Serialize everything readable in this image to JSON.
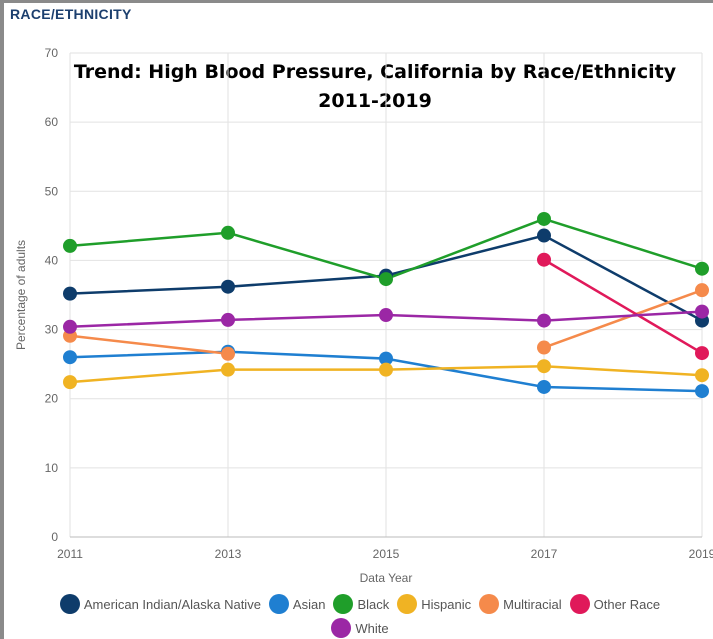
{
  "header": "RACE/ETHNICITY",
  "chart_data": {
    "type": "line",
    "title": "Trend: High Blood Pressure, California by Race/Ethnicity",
    "subtitle": "2011-2019",
    "x_label": "Data Year",
    "y_label": "Percentage of adults",
    "x": [
      2011,
      2013,
      2015,
      2017,
      2019
    ],
    "xlim": [
      2011,
      2019
    ],
    "xticks": [
      2011,
      2013,
      2015,
      2017,
      2019
    ],
    "ylim": [
      0,
      70
    ],
    "yticks": [
      0,
      10,
      20,
      30,
      40,
      50,
      60,
      70
    ],
    "grid": true,
    "series": [
      {
        "name": "American Indian/Alaska Native",
        "color": "#0e3c6b",
        "values": [
          35.2,
          36.2,
          37.8,
          43.6,
          31.3
        ]
      },
      {
        "name": "Asian",
        "color": "#1f7fd1",
        "values": [
          26.0,
          26.8,
          25.8,
          21.7,
          21.1
        ]
      },
      {
        "name": "Black",
        "color": "#1f9e2a",
        "values": [
          42.1,
          44.0,
          37.3,
          46.0,
          38.8
        ]
      },
      {
        "name": "Hispanic",
        "color": "#f0b323",
        "values": [
          22.4,
          24.2,
          24.2,
          24.7,
          23.4
        ]
      },
      {
        "name": "Multiracial",
        "color": "#f58a4b",
        "values": [
          29.1,
          26.5,
          null,
          27.4,
          35.7
        ]
      },
      {
        "name": "Other Race",
        "color": "#e0195a",
        "values": [
          null,
          null,
          null,
          40.1,
          26.6
        ]
      },
      {
        "name": "White",
        "color": "#9b27a5",
        "values": [
          30.4,
          31.4,
          32.1,
          31.3,
          32.6
        ]
      }
    ]
  }
}
